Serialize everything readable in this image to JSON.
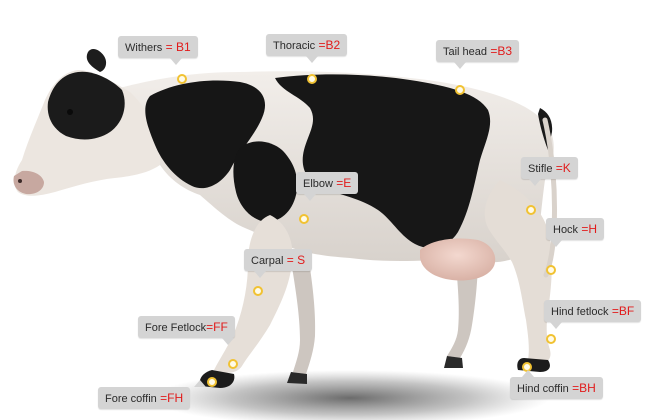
{
  "labels": [
    {
      "key": "withers",
      "name": "Withers",
      "code": " = B1",
      "tail": "down"
    },
    {
      "key": "thoracic",
      "name": "Thoracic",
      "code": " =B2",
      "tail": "down"
    },
    {
      "key": "tail-head",
      "name": "Tail head",
      "code": " =B3",
      "tail": "down"
    },
    {
      "key": "stifle",
      "name": "Stifle",
      "code": " =K",
      "tail": "down"
    },
    {
      "key": "elbow",
      "name": "Elbow",
      "code": " =E",
      "tail": "down"
    },
    {
      "key": "hock",
      "name": "Hock",
      "code": " =H",
      "tail": "down"
    },
    {
      "key": "carpal",
      "name": "Carpal",
      "code": " = S",
      "tail": "down"
    },
    {
      "key": "hind-fetlock",
      "name": "Hind fetlock",
      "code": " =BF",
      "tail": "down"
    },
    {
      "key": "fore-fetlock",
      "name": "Fore Fetlock",
      "code": "=FF",
      "tail": "down"
    },
    {
      "key": "hind-coffin",
      "name": "Hind coffin",
      "code": " =BH",
      "tail": "up"
    },
    {
      "key": "fore-coffin",
      "name": "Fore coffin",
      "code": " =FH",
      "tail": "up"
    }
  ],
  "colors": {
    "callout_bg": "#d4d4d4",
    "code_text": "#e11b1b",
    "marker_ring": "#f1c232"
  }
}
